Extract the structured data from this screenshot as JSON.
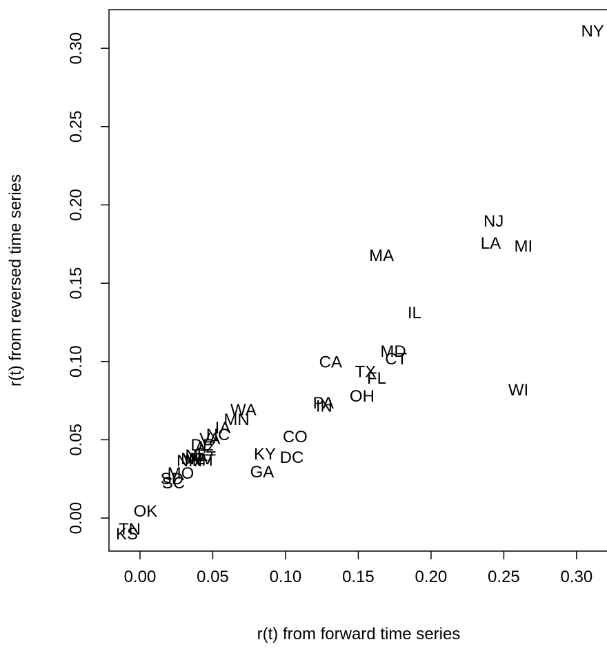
{
  "chart_data": {
    "type": "scatter",
    "x_label": "r(t) from forward time series",
    "y_label": "r(t) from reversed time series",
    "labels": [
      "NY",
      "NJ",
      "LA",
      "MI",
      "MA",
      "IL",
      "MD",
      "CT",
      "CA",
      "TX",
      "FL",
      "WI",
      "OH",
      "PA",
      "IN",
      "WA",
      "MN",
      "IA",
      "NC",
      "VA",
      "CO",
      "KY",
      "DC",
      "AZ",
      "DE",
      "NE",
      "WV",
      "MT",
      "ME",
      "NM",
      "MO",
      "GA",
      "SD",
      "SC",
      "OK",
      "TN",
      "KS"
    ],
    "x": [
      0.311,
      0.243,
      0.241,
      0.2635,
      0.166,
      0.1886,
      0.174,
      0.176,
      0.131,
      0.155,
      0.1626,
      0.26,
      0.1526,
      0.126,
      0.1265,
      0.0711,
      0.0664,
      0.0569,
      0.0536,
      0.048,
      0.1066,
      0.0858,
      0.1043,
      0.045,
      0.0427,
      0.0389,
      0.041,
      0.044,
      0.0365,
      0.034,
      0.028,
      0.0839,
      0.022,
      0.023,
      0.0038,
      -0.0071,
      -0.009
    ],
    "y": [
      0.3115,
      0.19,
      0.176,
      0.174,
      0.168,
      0.1315,
      0.107,
      0.102,
      0.1,
      0.094,
      0.0897,
      0.0823,
      0.0783,
      0.0739,
      0.072,
      0.0695,
      0.0634,
      0.058,
      0.0537,
      0.051,
      0.0524,
      0.0414,
      0.0392,
      0.0458,
      0.047,
      0.0405,
      0.0383,
      0.0374,
      0.0383,
      0.037,
      0.029,
      0.03,
      0.0255,
      0.0229,
      0.0048,
      -0.0066,
      -0.0097
    ],
    "xlim": [
      -0.0213,
      0.3209
    ],
    "ylim": [
      -0.0211,
      0.3247
    ],
    "xticks": [
      {
        "value": 0,
        "label": "0.00"
      },
      0.05,
      {
        "value": 0.1,
        "label": "0.10"
      },
      0.15,
      {
        "value": 0.2,
        "label": "0.20"
      },
      0.25,
      {
        "value": 0.3,
        "label": "0.30"
      }
    ],
    "yticks": [
      {
        "value": 0,
        "label": "0.00"
      },
      0.05,
      {
        "value": 0.1,
        "label": "0.10"
      },
      0.15,
      {
        "value": 0.2,
        "label": "0.20"
      },
      0.25,
      {
        "value": 0.3,
        "label": "0.30"
      }
    ]
  }
}
